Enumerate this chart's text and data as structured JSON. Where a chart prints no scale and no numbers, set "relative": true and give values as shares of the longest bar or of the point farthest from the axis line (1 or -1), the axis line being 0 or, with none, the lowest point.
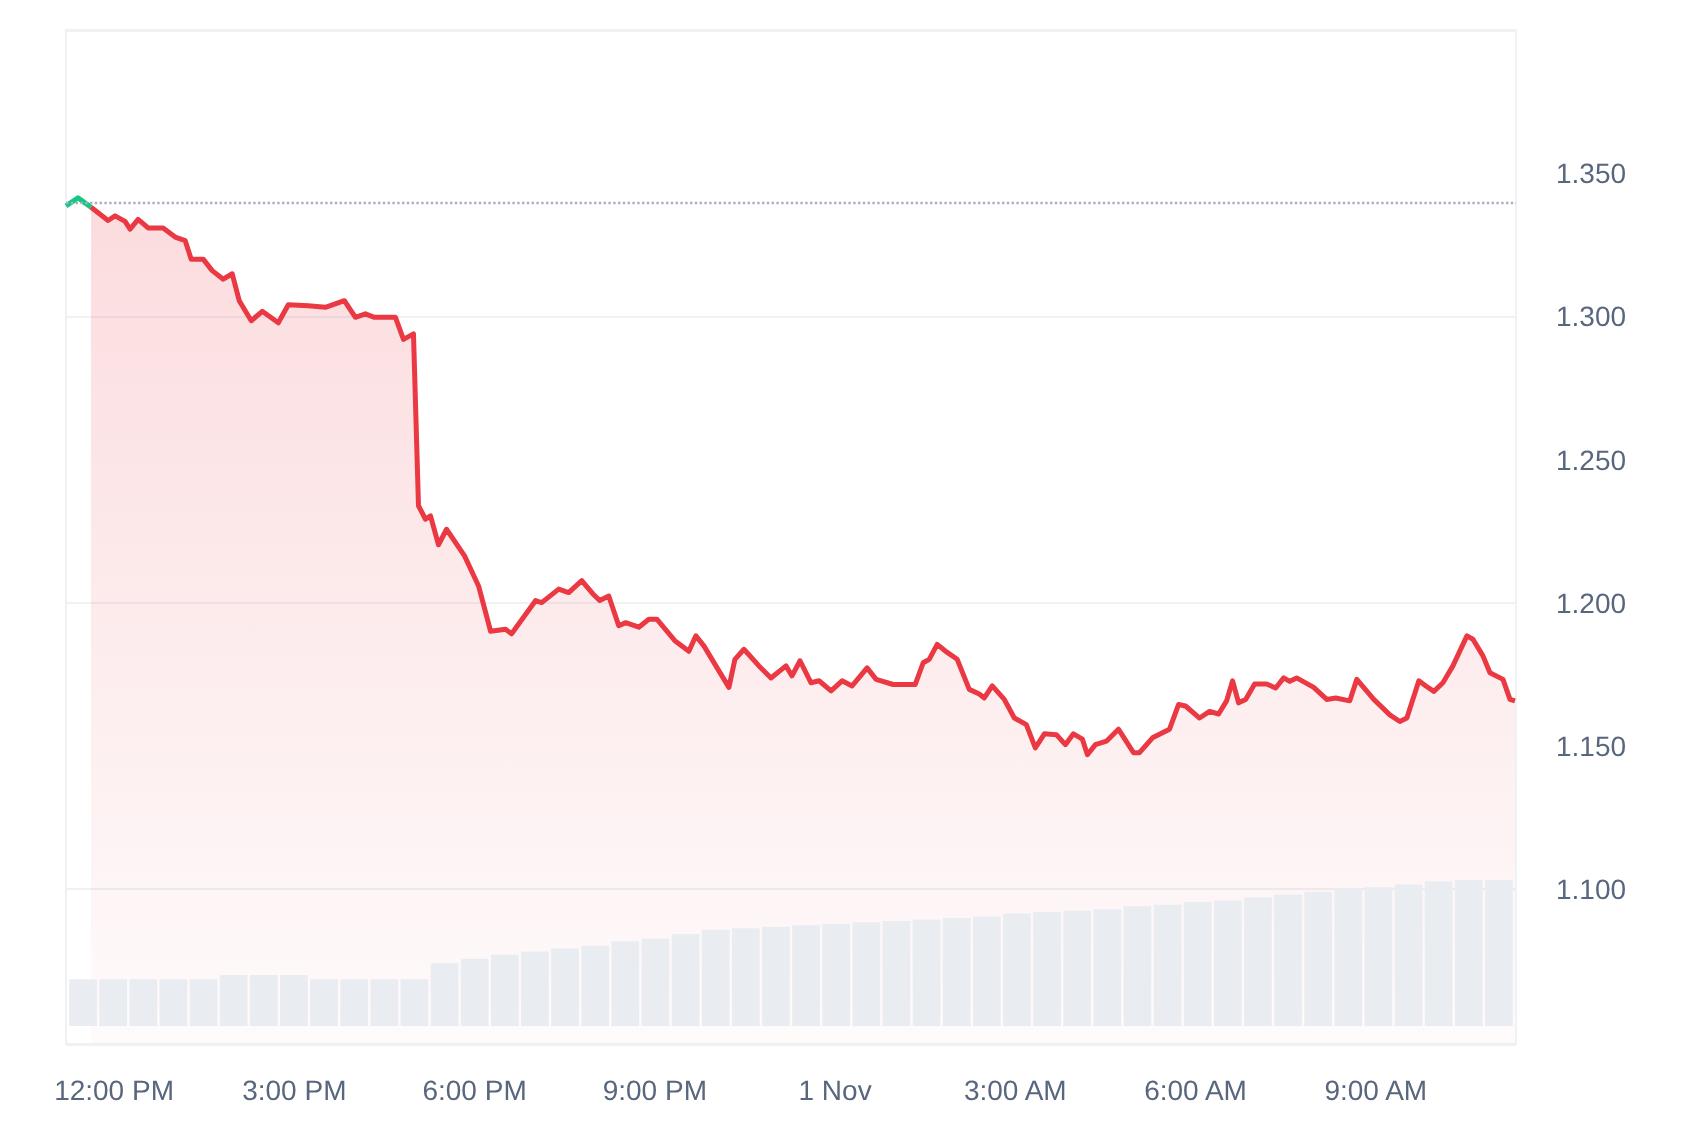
{
  "chart_data": [
    {
      "type": "line",
      "marker": "none",
      "grid": "y",
      "xlim": [
        "--10-31T11:12",
        "--11-01T11:20"
      ],
      "ylim": [
        1.046,
        1.4
      ],
      "xticks": [
        {
          "value": "--10-31T12:00",
          "label": "12:00 PM"
        },
        {
          "value": "--10-31T15:00",
          "label": "3:00 PM"
        },
        {
          "value": "--10-31T18:00",
          "label": "6:00 PM"
        },
        {
          "value": "--10-31T21:00",
          "label": "9:00 PM"
        },
        {
          "value": "--11-01T00:00",
          "label": "1 Nov"
        },
        {
          "value": "--11-01T03:00",
          "label": "3:00 AM"
        },
        {
          "value": "--11-01T06:00",
          "label": "6:00 AM"
        },
        {
          "value": "--11-01T09:00",
          "label": "9:00 AM"
        }
      ],
      "yticks": [
        {
          "value": 1.1,
          "label": "1.100"
        },
        {
          "value": 1.15,
          "label": "1.150"
        },
        {
          "value": 1.2,
          "label": "1.200"
        },
        {
          "value": 1.25,
          "label": "1.250"
        },
        {
          "value": 1.3,
          "label": "1.300"
        },
        {
          "value": 1.35,
          "label": "1.350"
        }
      ],
      "ref_lines": [
        {
          "axis": "y",
          "value": 1.3385,
          "color": "#a6b0c3",
          "line_style": "dotted"
        }
      ],
      "series": [
        {
          "color": "#16c784",
          "x": [
            "--10-31T11:12",
            "--10-31T11:24",
            "--10-31T11:37"
          ],
          "values": [
            1.3386,
            1.3414,
            1.3381
          ]
        },
        {
          "type": "area",
          "color": "#ea3943",
          "x": [
            "--10-31T11:37",
            "--10-31T11:54",
            "--10-31T12:01",
            "--10-31T12:11",
            "--10-31T12:16",
            "--10-31T12:24",
            "--10-31T12:34",
            "--10-31T12:49",
            "--10-31T13:01",
            "--10-31T13:11",
            "--10-31T13:17",
            "--10-31T13:29",
            "--10-31T13:38",
            "--10-31T13:49",
            "--10-31T13:58",
            "--10-31T14:05",
            "--10-31T14:17",
            "--10-31T14:28",
            "--10-31T14:44",
            "--10-31T14:54",
            "--10-31T15:14",
            "--10-31T15:31",
            "--10-31T15:50",
            "--10-31T16:01",
            "--10-31T16:11",
            "--10-31T16:20",
            "--10-31T16:41",
            "--10-31T16:49",
            "--10-31T16:59",
            "--10-31T17:04",
            "--10-31T17:11",
            "--10-31T17:16",
            "--10-31T17:24",
            "--10-31T17:32",
            "--10-31T17:50",
            "--10-31T18:04",
            "--10-31T18:16",
            "--10-31T18:31",
            "--10-31T18:37",
            "--10-31T19:01",
            "--10-31T19:07",
            "--10-31T19:24",
            "--10-31T19:34",
            "--10-31T19:47",
            "--10-31T19:58",
            "--10-31T20:05",
            "--10-31T20:14",
            "--10-31T20:24",
            "--10-31T20:31",
            "--10-31T20:44",
            "--10-31T20:54",
            "--10-31T21:02",
            "--10-31T21:20",
            "--10-31T21:34",
            "--10-31T21:41",
            "--10-31T21:49",
            "--10-31T22:01",
            "--10-31T22:14",
            "--10-31T22:20",
            "--10-31T22:29",
            "--10-31T22:44",
            "--10-31T22:56",
            "--10-31T23:11",
            "--10-31T23:17",
            "--10-31T23:25",
            "--10-31T23:36",
            "--10-31T23:44",
            "--10-31T23:56",
            "--11-01T00:07",
            "--11-01T00:17",
            "--11-01T00:32",
            "--11-01T00:41",
            "--11-01T00:58",
            "--11-01T01:20",
            "--11-01T01:28",
            "--11-01T01:34",
            "--11-01T01:42",
            "--11-01T01:52",
            "--11-01T02:02",
            "--11-01T02:14",
            "--11-01T02:24",
            "--11-01T02:29",
            "--11-01T02:37",
            "--11-01T02:49",
            "--11-01T02:59",
            "--11-01T03:11",
            "--11-01T03:20",
            "--11-01T03:29",
            "--11-01T03:41",
            "--11-01T03:50",
            "--11-01T03:58",
            "--11-01T04:07",
            "--11-01T04:12",
            "--11-01T04:20",
            "--11-01T04:31",
            "--11-01T04:43",
            "--11-01T04:58",
            "--11-01T05:04",
            "--11-01T05:17",
            "--11-01T05:34",
            "--11-01T05:43",
            "--11-01T05:50",
            "--11-01T06:04",
            "--11-01T06:14",
            "--11-01T06:23",
            "--11-01T06:31",
            "--11-01T06:37",
            "--11-01T06:43",
            "--11-01T06:50",
            "--11-01T06:59",
            "--11-01T07:11",
            "--11-01T07:20",
            "--11-01T07:28",
            "--11-01T07:34",
            "--11-01T07:41",
            "--11-01T07:58",
            "--11-01T08:11",
            "--11-01T08:20",
            "--11-01T08:34",
            "--11-01T08:41",
            "--11-01T08:58",
            "--11-01T09:14",
            "--11-01T09:24",
            "--11-01T09:31",
            "--11-01T09:43",
            "--11-01T09:50",
            "--11-01T09:58",
            "--11-01T10:07",
            "--11-01T10:17",
            "--11-01T10:31",
            "--11-01T10:37",
            "--11-01T10:47",
            "--11-01T10:54",
            "--11-01T11:07",
            "--11-01T11:14",
            "--11-01T11:19"
          ],
          "values": [
            1.3381,
            1.3335,
            1.3351,
            1.3332,
            1.3305,
            1.3339,
            1.3309,
            1.3309,
            1.3277,
            1.3265,
            1.32,
            1.32,
            1.316,
            1.313,
            1.3149,
            1.3055,
            1.2985,
            1.3018,
            1.2978,
            1.3041,
            1.3037,
            1.3032,
            1.3055,
            1.2997,
            1.3009,
            1.2997,
            1.2997,
            1.292,
            1.2939,
            1.2339,
            1.2292,
            1.2304,
            1.2203,
            1.2257,
            1.2164,
            1.2059,
            1.1901,
            1.1908,
            1.1892,
            1.2008,
            1.2001,
            1.2048,
            1.2036,
            1.2078,
            1.2032,
            1.2008,
            1.2024,
            1.192,
            1.1931,
            1.1915,
            1.1943,
            1.1943,
            1.1868,
            1.1831,
            1.1885,
            1.185,
            1.178,
            1.1705,
            1.1803,
            1.1838,
            1.178,
            1.1738,
            1.178,
            1.1745,
            1.1798,
            1.1721,
            1.1728,
            1.1693,
            1.1728,
            1.171,
            1.1773,
            1.1733,
            1.1715,
            1.1715,
            1.1791,
            1.1803,
            1.1855,
            1.1827,
            1.1803,
            1.1698,
            1.1682,
            1.1668,
            1.171,
            1.1663,
            1.1598,
            1.1575,
            1.1494,
            1.1543,
            1.154,
            1.1505,
            1.1543,
            1.1524,
            1.147,
            1.1505,
            1.1517,
            1.1559,
            1.1477,
            1.1477,
            1.1529,
            1.1559,
            1.1645,
            1.164,
            1.1598,
            1.1621,
            1.1612,
            1.1658,
            1.1728,
            1.1651,
            1.1663,
            1.1717,
            1.1717,
            1.1703,
            1.1738,
            1.1726,
            1.1738,
            1.1705,
            1.1663,
            1.1668,
            1.1658,
            1.1733,
            1.1663,
            1.1609,
            1.1586,
            1.1598,
            1.1728,
            1.171,
            1.1691,
            1.1721,
            1.178,
            1.1885,
            1.1873,
            1.1815,
            1.1756,
            1.1733,
            1.1663,
            1.1658
          ]
        }
      ]
    },
    {
      "type": "bar",
      "relative": true,
      "categories": [
        null,
        null,
        null,
        null,
        null,
        null,
        null,
        null,
        null,
        null,
        null,
        null,
        null,
        null,
        null,
        null,
        null,
        null,
        null,
        null,
        null,
        null,
        null,
        null,
        null,
        null,
        null,
        null,
        null,
        null,
        null,
        null,
        null,
        null,
        null,
        null,
        null,
        null,
        null,
        null,
        null,
        null,
        null,
        null,
        null,
        null,
        null,
        null
      ],
      "series": [
        {
          "color": "#e9edf2",
          "values": [
            0.32,
            0.32,
            0.32,
            0.32,
            0.32,
            0.35,
            0.35,
            0.35,
            0.32,
            0.32,
            0.32,
            0.32,
            0.43,
            0.46,
            0.49,
            0.51,
            0.53,
            0.55,
            0.58,
            0.6,
            0.63,
            0.66,
            0.67,
            0.68,
            0.69,
            0.7,
            0.71,
            0.72,
            0.73,
            0.74,
            0.75,
            0.77,
            0.78,
            0.79,
            0.8,
            0.82,
            0.83,
            0.85,
            0.86,
            0.88,
            0.9,
            0.92,
            0.94,
            0.95,
            0.97,
            0.99,
            1,
            1
          ]
        }
      ]
    }
  ]
}
